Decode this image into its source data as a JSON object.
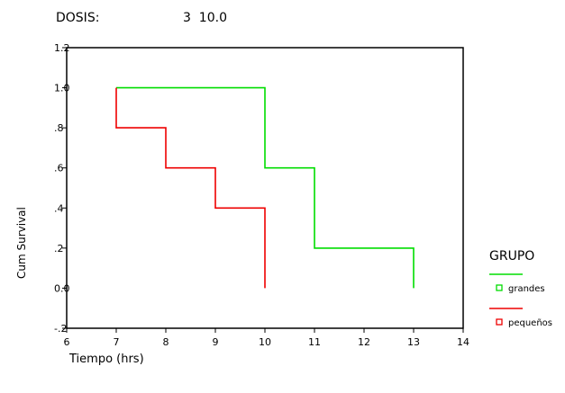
{
  "header": {
    "label": "DOSIS:",
    "value": "3  10.0"
  },
  "chart_data": {
    "type": "line",
    "step": true,
    "xlabel": "Tiempo (hrs)",
    "ylabel": "Cum Survival",
    "xlim": [
      6,
      14
    ],
    "ylim": [
      -0.2,
      1.2
    ],
    "x_ticks": [
      {
        "value": 6,
        "label": "6"
      },
      {
        "value": 7,
        "label": "7"
      },
      {
        "value": 8,
        "label": "8"
      },
      {
        "value": 9,
        "label": "9"
      },
      {
        "value": 10,
        "label": "10"
      },
      {
        "value": 11,
        "label": "11"
      },
      {
        "value": 12,
        "label": "12"
      },
      {
        "value": 13,
        "label": "13"
      },
      {
        "value": 14,
        "label": "14"
      }
    ],
    "y_ticks": [
      {
        "value": 1.2,
        "label": "1.2"
      },
      {
        "value": 1.0,
        "label": "1.0"
      },
      {
        "value": 0.8,
        "label": ".8"
      },
      {
        "value": 0.6,
        "label": ".6"
      },
      {
        "value": 0.4,
        "label": ".4"
      },
      {
        "value": 0.2,
        "label": ".2"
      },
      {
        "value": 0.0,
        "label": "0.0"
      },
      {
        "value": -0.2,
        "label": "-.2"
      }
    ],
    "grid": false,
    "legend": {
      "title": "GRUPO",
      "placement": "right"
    },
    "series": [
      {
        "name": "grandes",
        "color": "#00dd00",
        "points": [
          [
            7,
            1.0
          ],
          [
            10,
            1.0
          ],
          [
            10,
            0.6
          ],
          [
            11,
            0.6
          ],
          [
            11,
            0.2
          ],
          [
            13,
            0.2
          ],
          [
            13,
            0.0
          ]
        ]
      },
      {
        "name": "pequeños",
        "color": "#ee0000",
        "points": [
          [
            7,
            1.0
          ],
          [
            7,
            0.8
          ],
          [
            8,
            0.8
          ],
          [
            8,
            0.6
          ],
          [
            9,
            0.6
          ],
          [
            9,
            0.4
          ],
          [
            10,
            0.4
          ],
          [
            10,
            0.0
          ]
        ]
      }
    ]
  }
}
